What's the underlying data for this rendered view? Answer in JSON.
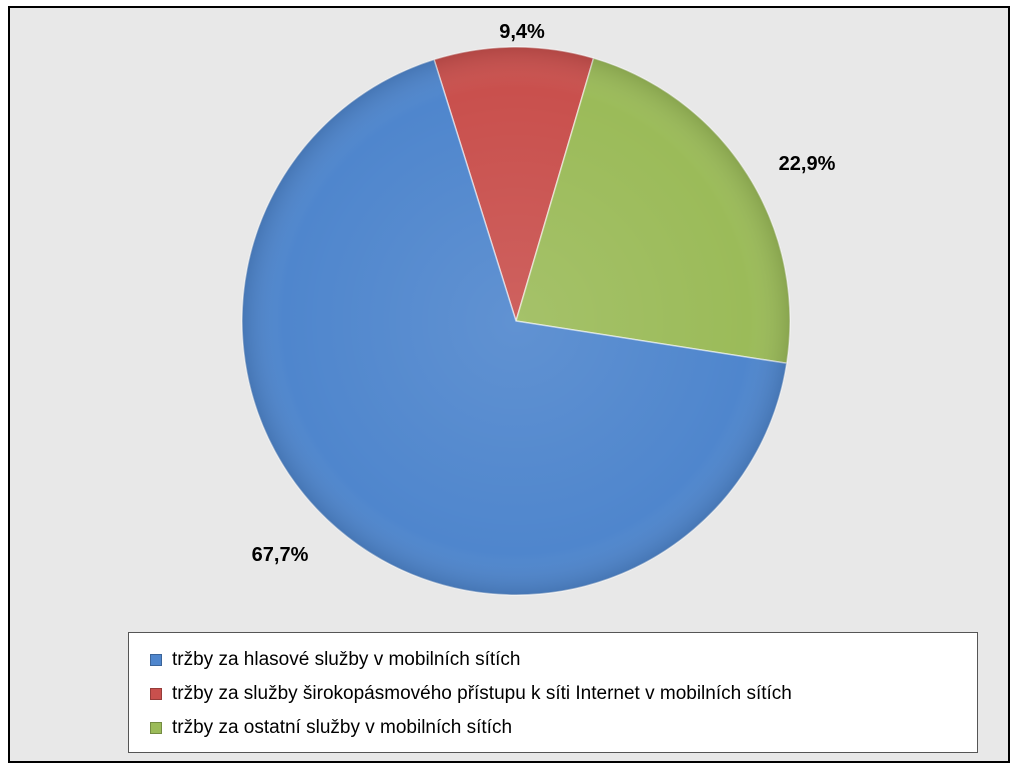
{
  "chart_data": {
    "type": "pie",
    "categories": [
      "tržby za hlasové služby v mobilních sítích",
      "tržby za služby širokopásmového přístupu k síti Internet v mobilních sítích",
      "tržby za ostatní služby v mobilních sítích"
    ],
    "values": [
      67.7,
      9.4,
      22.9
    ],
    "labels": [
      "67,7%",
      "9,4%",
      "22,9%"
    ],
    "colors": [
      "#4f86cd",
      "#c9504d",
      "#9bbb59"
    ],
    "legend_position": "bottom",
    "title": ""
  }
}
